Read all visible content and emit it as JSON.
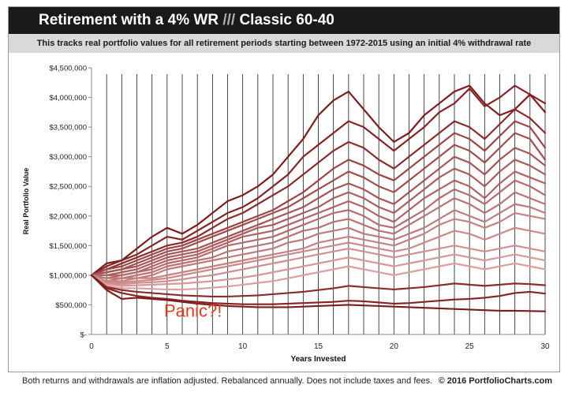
{
  "header": {
    "title_main": "Retirement with a 4% WR",
    "title_slashes": "///",
    "title_portfolio": "Classic 60-40",
    "subtitle": "This tracks real portfolio values for all retirement periods starting between 1972-2015 using an initial 4% withdrawal rate"
  },
  "footer": {
    "note": "Both returns and withdrawals are inflation adjusted.  Rebalanced annually.  Does not include taxes and fees.",
    "copyright": "© 2016 PortfolioCharts.com"
  },
  "colors": {
    "line_dark": "#7e1c1c",
    "line_light": "#f3c0c0",
    "annotation": "#e03c1e",
    "title_bg": "#1a1a1a",
    "subtitle_bg": "#d9d9d9"
  },
  "chart_data": {
    "type": "line",
    "xlabel": "Years Invested",
    "ylabel": "Real Portfolio Value",
    "xlim": [
      0,
      30
    ],
    "ylim": [
      0,
      4500000
    ],
    "x_ticks": [
      0,
      5,
      10,
      15,
      20,
      25,
      30
    ],
    "y_ticks": [
      0,
      500000,
      1000000,
      1500000,
      2000000,
      2500000,
      3000000,
      3500000,
      4000000,
      4500000
    ],
    "y_tick_labels": [
      "$-",
      "$500,000",
      "$1,000,000",
      "$1,500,000",
      "$2,000,000",
      "$2,500,000",
      "$3,000,000",
      "$3,500,000",
      "$4,000,000",
      "$4,500,000"
    ],
    "grid": "vertical lines at each year",
    "annotation": "Panic?!",
    "series": [
      {
        "values": [
          1000000,
          1200000,
          1250000,
          1450000,
          1650000,
          1800000,
          1700000,
          1850000,
          2050000,
          2250000,
          2350000,
          2500000,
          2700000,
          3000000,
          3300000,
          3700000,
          3950000,
          4100000,
          3800000,
          3500000,
          3250000,
          3400000,
          3700000,
          3900000,
          4100000,
          4200000,
          3900000,
          3700000,
          3800000,
          4050000,
          3750000
        ]
      },
      {
        "values": [
          1000000,
          1150000,
          1250000,
          1350000,
          1500000,
          1650000,
          1600000,
          1750000,
          1900000,
          2050000,
          2150000,
          2300000,
          2500000,
          2700000,
          3000000,
          3200000,
          3400000,
          3600000,
          3500000,
          3300000,
          3100000,
          3300000,
          3500000,
          3750000,
          3900000,
          4150000,
          3850000,
          4000000,
          4200000,
          4050000,
          3900000
        ]
      },
      {
        "values": [
          1000000,
          1100000,
          1200000,
          1300000,
          1400000,
          1500000,
          1550000,
          1650000,
          1800000,
          1950000,
          2050000,
          2200000,
          2350000,
          2500000,
          2700000,
          2900000,
          3100000,
          3250000,
          3150000,
          2950000,
          2800000,
          3000000,
          3200000,
          3400000,
          3600000,
          3500000,
          3300000,
          3550000,
          3800000,
          3650000,
          3400000
        ]
      },
      {
        "values": [
          1000000,
          1100000,
          1150000,
          1250000,
          1350000,
          1450000,
          1500000,
          1600000,
          1700000,
          1800000,
          1900000,
          2000000,
          2100000,
          2250000,
          2400000,
          2600000,
          2800000,
          2950000,
          2850000,
          2700000,
          2600000,
          2800000,
          3000000,
          3200000,
          3400000,
          3300000,
          3100000,
          3350000,
          3600000,
          3500000,
          3150000
        ]
      },
      {
        "values": [
          1000000,
          1050000,
          1100000,
          1200000,
          1300000,
          1400000,
          1450000,
          1550000,
          1650000,
          1750000,
          1850000,
          1950000,
          2050000,
          2150000,
          2300000,
          2450000,
          2600000,
          2750000,
          2650000,
          2500000,
          2400000,
          2600000,
          2800000,
          3000000,
          3200000,
          3100000,
          2900000,
          3150000,
          3400000,
          3300000,
          2950000
        ]
      },
      {
        "values": [
          1000000,
          1050000,
          1100000,
          1150000,
          1250000,
          1350000,
          1400000,
          1450000,
          1550000,
          1650000,
          1750000,
          1850000,
          1950000,
          2050000,
          2150000,
          2300000,
          2450000,
          2550000,
          2450000,
          2300000,
          2200000,
          2400000,
          2600000,
          2800000,
          3000000,
          2900000,
          2700000,
          2950000,
          3150000,
          3050000,
          2850000
        ]
      },
      {
        "values": [
          1000000,
          1000000,
          1050000,
          1100000,
          1200000,
          1300000,
          1350000,
          1400000,
          1500000,
          1600000,
          1700000,
          1800000,
          1850000,
          1950000,
          2050000,
          2150000,
          2300000,
          2400000,
          2300000,
          2150000,
          2050000,
          2250000,
          2450000,
          2650000,
          2800000,
          2700000,
          2500000,
          2750000,
          2950000,
          2850000,
          2700000
        ]
      },
      {
        "values": [
          1000000,
          1000000,
          1000000,
          1050000,
          1150000,
          1250000,
          1300000,
          1350000,
          1450000,
          1550000,
          1650000,
          1700000,
          1750000,
          1850000,
          1950000,
          2050000,
          2150000,
          2250000,
          2150000,
          2000000,
          1900000,
          2100000,
          2300000,
          2450000,
          2600000,
          2500000,
          2300000,
          2550000,
          2750000,
          2650000,
          2550000
        ]
      },
      {
        "values": [
          1000000,
          950000,
          1000000,
          1050000,
          1100000,
          1200000,
          1250000,
          1300000,
          1400000,
          1500000,
          1550000,
          1600000,
          1650000,
          1750000,
          1850000,
          1950000,
          2050000,
          2100000,
          2000000,
          1850000,
          1800000,
          1950000,
          2100000,
          2300000,
          2450000,
          2350000,
          2200000,
          2400000,
          2600000,
          2500000,
          2350000
        ]
      },
      {
        "values": [
          1000000,
          950000,
          950000,
          1000000,
          1050000,
          1150000,
          1200000,
          1250000,
          1300000,
          1400000,
          1450000,
          1500000,
          1550000,
          1650000,
          1750000,
          1800000,
          1900000,
          1950000,
          1850000,
          1750000,
          1700000,
          1850000,
          2000000,
          2150000,
          2300000,
          2200000,
          2050000,
          2200000,
          2400000,
          2300000,
          2200000
        ]
      },
      {
        "values": [
          1000000,
          900000,
          950000,
          950000,
          1000000,
          1100000,
          1150000,
          1200000,
          1250000,
          1300000,
          1350000,
          1400000,
          1450000,
          1550000,
          1600000,
          1700000,
          1750000,
          1800000,
          1700000,
          1650000,
          1600000,
          1700000,
          1800000,
          1950000,
          2100000,
          2000000,
          1900000,
          2050000,
          2200000,
          2150000,
          2050000
        ]
      },
      {
        "values": [
          1000000,
          900000,
          900000,
          950000,
          950000,
          1000000,
          1050000,
          1100000,
          1150000,
          1200000,
          1250000,
          1300000,
          1350000,
          1400000,
          1450000,
          1550000,
          1600000,
          1650000,
          1600000,
          1550000,
          1500000,
          1600000,
          1700000,
          1850000,
          1950000,
          1900000,
          1800000,
          1900000,
          2050000,
          2000000,
          1950000
        ]
      },
      {
        "values": [
          1000000,
          880000,
          880000,
          900000,
          920000,
          950000,
          1000000,
          1050000,
          1100000,
          1150000,
          1200000,
          1250000,
          1300000,
          1350000,
          1400000,
          1450000,
          1500000,
          1550000,
          1500000,
          1450000,
          1400000,
          1450000,
          1550000,
          1650000,
          1750000,
          1700000,
          1600000,
          1700000,
          1800000,
          1750000,
          1700000
        ]
      },
      {
        "values": [
          1000000,
          860000,
          850000,
          870000,
          880000,
          900000,
          930000,
          970000,
          1000000,
          1050000,
          1100000,
          1150000,
          1200000,
          1250000,
          1300000,
          1350000,
          1400000,
          1450000,
          1400000,
          1350000,
          1300000,
          1350000,
          1400000,
          1450000,
          1500000,
          1450000,
          1400000,
          1450000,
          1500000,
          1450000,
          1400000
        ]
      },
      {
        "values": [
          1000000,
          850000,
          820000,
          830000,
          840000,
          850000,
          860000,
          880000,
          900000,
          930000,
          960000,
          1000000,
          1050000,
          1100000,
          1150000,
          1200000,
          1250000,
          1300000,
          1250000,
          1200000,
          1150000,
          1200000,
          1250000,
          1300000,
          1350000,
          1300000,
          1250000,
          1300000,
          1350000,
          1300000,
          1250000
        ]
      },
      {
        "values": [
          1000000,
          820000,
          780000,
          780000,
          770000,
          760000,
          760000,
          770000,
          790000,
          810000,
          840000,
          870000,
          900000,
          950000,
          1000000,
          1050000,
          1100000,
          1150000,
          1100000,
          1050000,
          1000000,
          1050000,
          1100000,
          1150000,
          1200000,
          1150000,
          1100000,
          1150000,
          1200000,
          1150000,
          1100000
        ]
      },
      {
        "values": [
          1000000,
          800000,
          750000,
          720000,
          700000,
          680000,
          660000,
          650000,
          640000,
          640000,
          650000,
          660000,
          680000,
          700000,
          720000,
          750000,
          780000,
          820000,
          800000,
          780000,
          760000,
          780000,
          800000,
          830000,
          860000,
          840000,
          820000,
          840000,
          860000,
          850000,
          830000
        ]
      },
      {
        "values": [
          1000000,
          780000,
          700000,
          650000,
          620000,
          600000,
          570000,
          550000,
          530000,
          520000,
          510000,
          510000,
          510000,
          520000,
          530000,
          540000,
          550000,
          570000,
          560000,
          540000,
          520000,
          530000,
          550000,
          570000,
          590000,
          600000,
          620000,
          650000,
          700000,
          720000,
          690000
        ]
      },
      {
        "values": [
          1000000,
          750000,
          600000,
          620000,
          600000,
          580000,
          550000,
          520000,
          500000,
          480000,
          470000,
          460000,
          460000,
          460000,
          470000,
          480000,
          490000,
          500000,
          490000,
          480000,
          470000,
          460000,
          450000,
          440000,
          430000,
          420000,
          410000,
          400000,
          400000,
          395000,
          390000
        ]
      }
    ]
  }
}
